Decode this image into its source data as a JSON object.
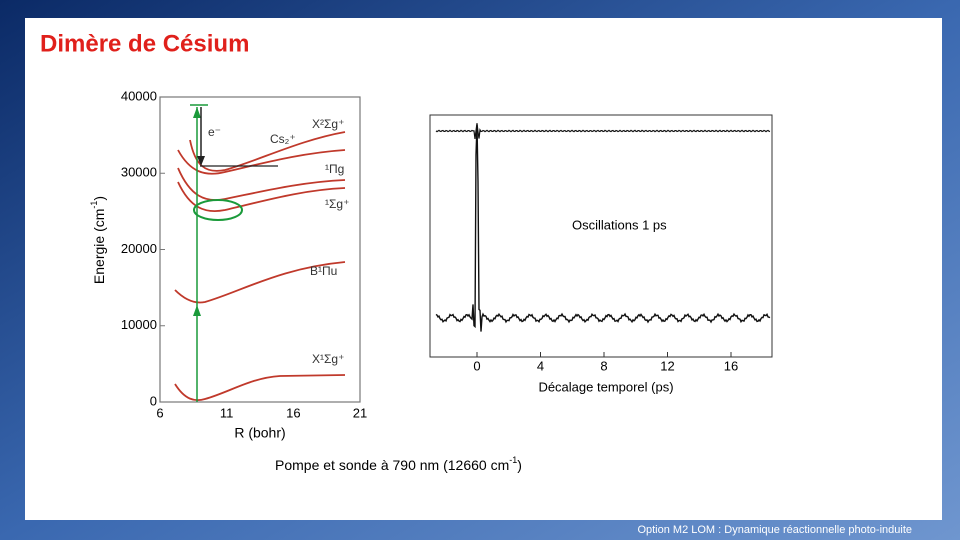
{
  "title": "Dimère de Césium",
  "figure_left": {
    "y_label": [
      "Energie (cm",
      "-1",
      ")"
    ],
    "x_label": "R (bohr)",
    "yticks": [
      "0",
      "10000",
      "20000",
      "30000",
      "40000"
    ],
    "xticks": [
      "6",
      "11",
      "16",
      "21"
    ],
    "labels": [
      "e⁻",
      "Cs₂⁺",
      "X²Σg⁺",
      "¹Πg",
      "¹Σg⁺",
      "B¹Πu",
      "X¹Σg⁺"
    ]
  },
  "figure_right": {
    "annotation": "Oscillations 1 ps",
    "xticks": [
      "0",
      "4",
      "8",
      "12",
      "16"
    ],
    "x_label": "Décalage temporel (ps)"
  },
  "caption": [
    "Pompe et sonde à 790 nm (12660 cm",
    "-1",
    ")"
  ],
  "footer": "Option M2 LOM : Dynamique réactionnelle photo-induite"
}
